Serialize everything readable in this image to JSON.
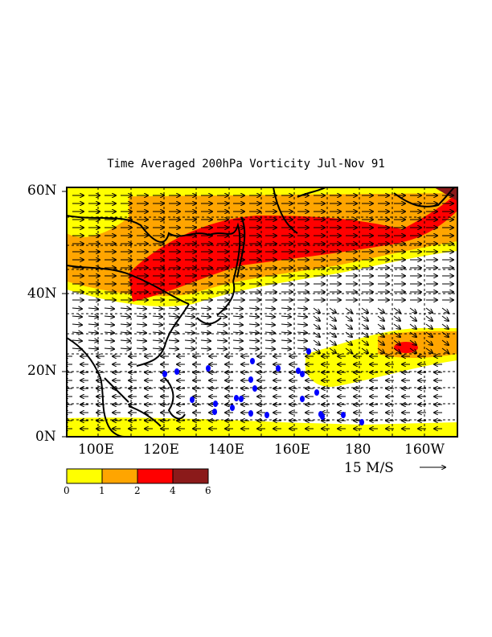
{
  "title": "Time Averaged 200hPa Vorticity Jul-Nov 91",
  "lat_labels": [
    "60N",
    "40N",
    "20N",
    "0N"
  ],
  "lon_labels": [
    "100E",
    "120E",
    "140E",
    "160E",
    "180",
    "160W"
  ],
  "vector_scale": {
    "label": "15 M/S",
    "arrow": "→"
  },
  "colorbar": {
    "levels": [
      "0",
      "1",
      "2",
      "4",
      "6"
    ],
    "colors": [
      "#ffff00",
      "#ffa500",
      "#ff0000",
      "#8b1a1a"
    ]
  },
  "colors": {
    "land": "#000000",
    "cyclone_marker": "#0000ff"
  }
}
